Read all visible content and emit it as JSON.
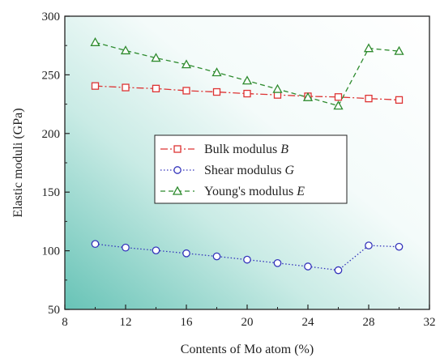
{
  "chart_data": {
    "type": "line",
    "xlabel": "Contents of Mo atom (%)",
    "ylabel": "Elastic moduli (GPa)",
    "xlim": [
      8,
      32
    ],
    "ylim": [
      50,
      300
    ],
    "x_ticks": [
      8,
      12,
      16,
      20,
      24,
      28,
      32
    ],
    "y_ticks": [
      50,
      100,
      150,
      200,
      250,
      300
    ],
    "x": [
      10,
      12,
      14,
      16,
      18,
      20,
      22,
      24,
      26,
      28,
      30
    ],
    "grid": false,
    "legend_position": "center",
    "background": "gradient teal (bottom-left) to white (top-right)",
    "series": [
      {
        "name": "Bulk modulus",
        "symbol": "B",
        "color": "#dd3333",
        "line_style": "dash-dot",
        "marker": "square",
        "values": [
          240.5,
          239.2,
          238.3,
          236.5,
          235.4,
          234.0,
          232.9,
          231.7,
          231.1,
          229.8,
          228.6
        ]
      },
      {
        "name": "Shear modulus",
        "symbol": "G",
        "color": "#3333bb",
        "line_style": "dotted",
        "marker": "circle",
        "values": [
          105.8,
          102.7,
          100.3,
          97.8,
          95.2,
          92.4,
          89.5,
          86.6,
          83.4,
          104.5,
          103.4
        ]
      },
      {
        "name": "Young's modulus",
        "symbol": "E",
        "color": "#2e8b2e",
        "line_style": "dashed",
        "marker": "triangle",
        "values": [
          277.7,
          270.7,
          264.4,
          258.8,
          252.0,
          245.0,
          237.8,
          230.8,
          223.6,
          272.6,
          270.2
        ]
      }
    ]
  }
}
